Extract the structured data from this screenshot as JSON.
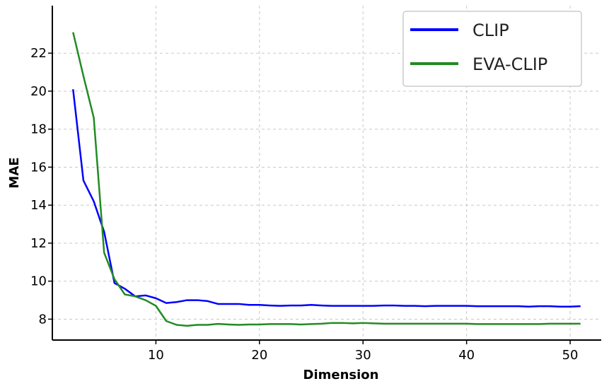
{
  "chart_data": {
    "type": "line",
    "xlabel": "Dimension",
    "ylabel": "MAE",
    "xlim": [
      0,
      53
    ],
    "ylim": [
      6.9,
      24.5
    ],
    "x_ticks": [
      10,
      20,
      30,
      40,
      50
    ],
    "y_ticks": [
      8,
      10,
      12,
      14,
      16,
      18,
      20,
      22
    ],
    "grid": true,
    "legend_position": "top-right",
    "x": [
      2,
      3,
      4,
      5,
      6,
      7,
      8,
      9,
      10,
      11,
      12,
      13,
      14,
      15,
      16,
      17,
      18,
      19,
      20,
      21,
      22,
      23,
      24,
      25,
      26,
      27,
      28,
      29,
      30,
      31,
      32,
      33,
      34,
      35,
      36,
      37,
      38,
      39,
      40,
      41,
      42,
      43,
      44,
      45,
      46,
      47,
      48,
      49,
      50,
      51
    ],
    "series": [
      {
        "name": "CLIP",
        "color": "#0000ff",
        "values": [
          20.1,
          15.3,
          14.2,
          12.6,
          9.9,
          9.6,
          9.2,
          9.25,
          9.1,
          8.85,
          8.9,
          9.0,
          9.0,
          8.95,
          8.8,
          8.8,
          8.8,
          8.75,
          8.75,
          8.72,
          8.7,
          8.72,
          8.72,
          8.75,
          8.72,
          8.7,
          8.7,
          8.7,
          8.7,
          8.7,
          8.72,
          8.72,
          8.7,
          8.7,
          8.68,
          8.7,
          8.7,
          8.7,
          8.7,
          8.68,
          8.68,
          8.68,
          8.68,
          8.68,
          8.66,
          8.68,
          8.68,
          8.66,
          8.66,
          8.68
        ]
      },
      {
        "name": "EVA-CLIP",
        "color": "#228b22",
        "values": [
          23.1,
          20.8,
          18.6,
          11.5,
          10.1,
          9.3,
          9.2,
          9.0,
          8.7,
          7.9,
          7.7,
          7.65,
          7.7,
          7.7,
          7.75,
          7.72,
          7.7,
          7.72,
          7.72,
          7.74,
          7.74,
          7.74,
          7.72,
          7.74,
          7.76,
          7.8,
          7.8,
          7.78,
          7.8,
          7.78,
          7.76,
          7.76,
          7.76,
          7.76,
          7.76,
          7.76,
          7.76,
          7.76,
          7.76,
          7.74,
          7.74,
          7.74,
          7.74,
          7.74,
          7.74,
          7.74,
          7.76,
          7.76,
          7.76,
          7.76
        ]
      }
    ]
  }
}
